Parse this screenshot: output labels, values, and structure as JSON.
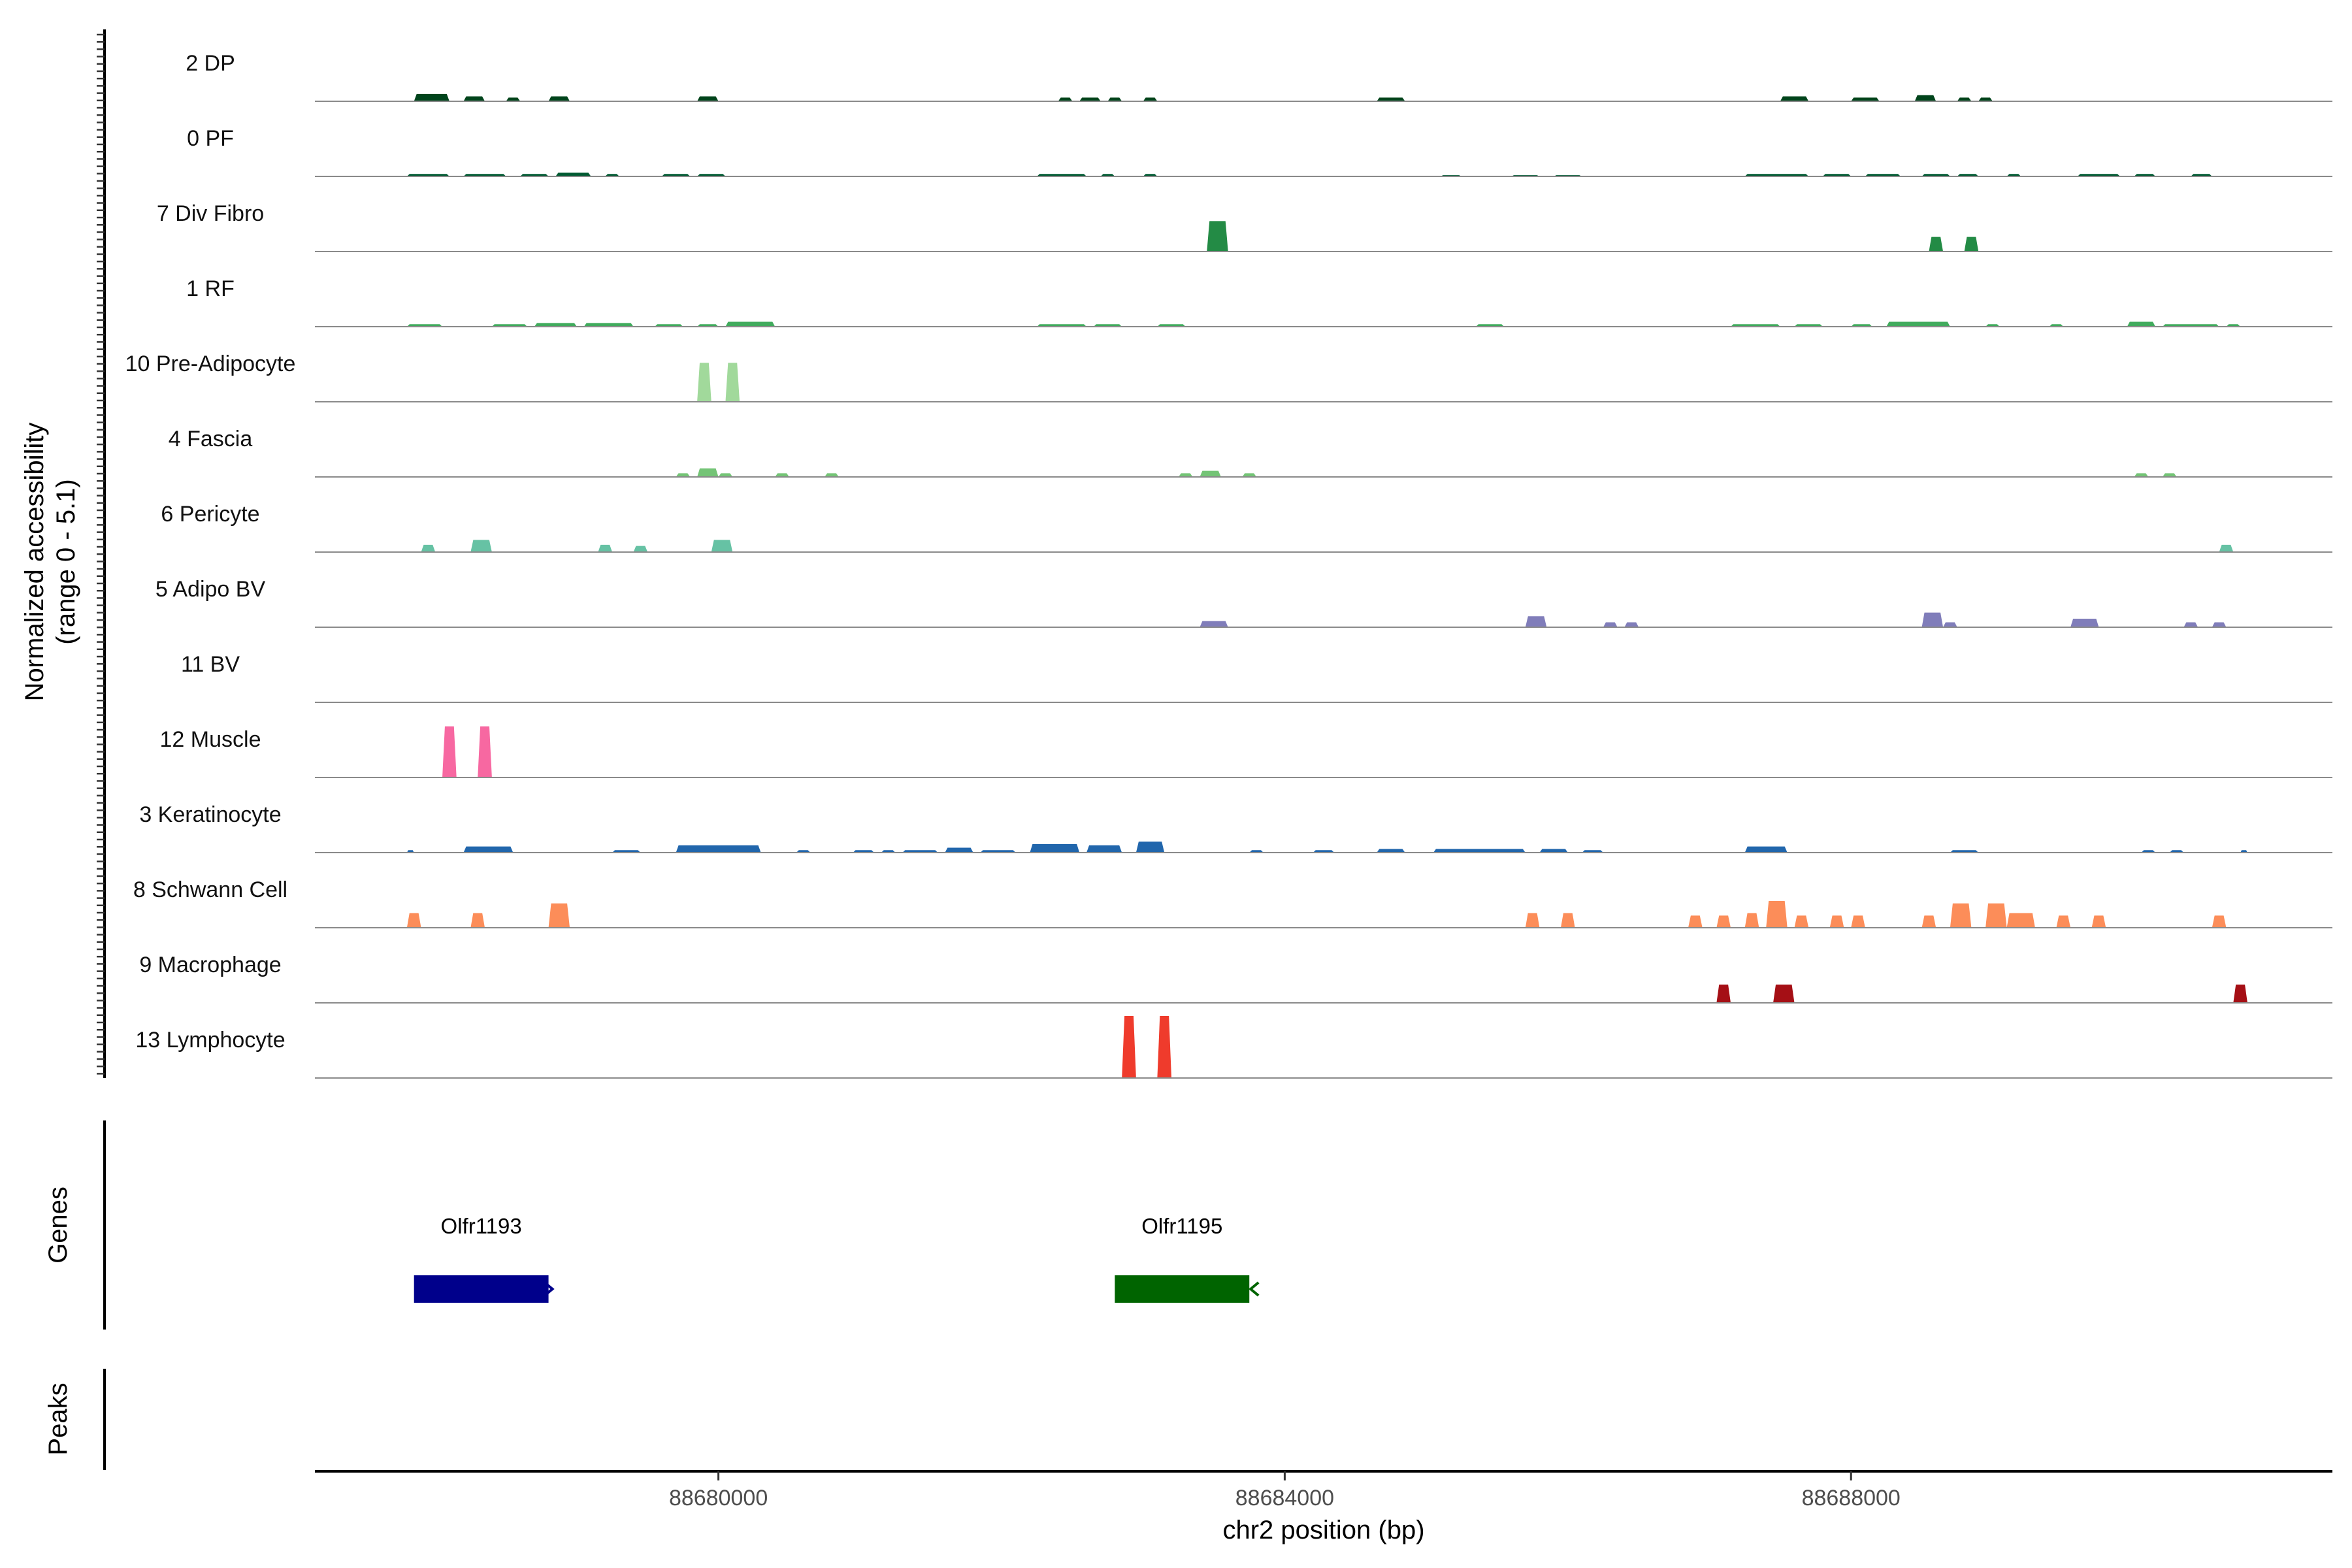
{
  "chart_data": {
    "type": "area",
    "ylabel_line1": "Normalized accessibility",
    "ylabel_line2": "(range 0 - 5.1)",
    "ylim": [
      0,
      5.1
    ],
    "xlabel": "chr2 position (bp)",
    "xlim": [
      88677150,
      88691400
    ],
    "xticks": [
      88680000,
      88684000,
      88688000
    ],
    "xtick_labels": [
      "88680000",
      "88684000",
      "88688000"
    ],
    "tracks": [
      {
        "name": "2 DP",
        "color": "#00441b",
        "peaks": [
          [
            88677850,
            88678100,
            0.6
          ],
          [
            88678200,
            88678350,
            0.4
          ],
          [
            88678500,
            88678600,
            0.3
          ],
          [
            88678800,
            88678950,
            0.4
          ],
          [
            88679850,
            88680000,
            0.4
          ],
          [
            88682400,
            88682500,
            0.3
          ],
          [
            88682550,
            88682700,
            0.3
          ],
          [
            88682750,
            88682850,
            0.3
          ],
          [
            88683000,
            88683100,
            0.3
          ],
          [
            88684650,
            88684850,
            0.3
          ],
          [
            88687500,
            88687700,
            0.4
          ],
          [
            88688000,
            88688200,
            0.3
          ],
          [
            88688450,
            88688600,
            0.5
          ],
          [
            88688750,
            88688850,
            0.3
          ],
          [
            88688900,
            88689000,
            0.3
          ]
        ]
      },
      {
        "name": "0 PF",
        "color": "#005a32",
        "peaks": [
          [
            88677800,
            88678100,
            0.2
          ],
          [
            88678200,
            88678500,
            0.2
          ],
          [
            88678600,
            88678800,
            0.2
          ],
          [
            88678850,
            88679100,
            0.3
          ],
          [
            88679200,
            88679300,
            0.2
          ],
          [
            88679600,
            88679800,
            0.2
          ],
          [
            88679850,
            88680050,
            0.2
          ],
          [
            88682250,
            88682600,
            0.2
          ],
          [
            88682700,
            88682800,
            0.2
          ],
          [
            88683000,
            88683100,
            0.2
          ],
          [
            88685100,
            88685250,
            0.1
          ],
          [
            88685600,
            88685800,
            0.1
          ],
          [
            88685900,
            88686100,
            0.1
          ],
          [
            88687250,
            88687700,
            0.2
          ],
          [
            88687800,
            88688000,
            0.2
          ],
          [
            88688100,
            88688350,
            0.2
          ],
          [
            88688500,
            88688700,
            0.2
          ],
          [
            88688750,
            88688900,
            0.2
          ],
          [
            88689100,
            88689200,
            0.2
          ],
          [
            88689600,
            88689900,
            0.2
          ],
          [
            88690000,
            88690150,
            0.2
          ],
          [
            88690400,
            88690550,
            0.2
          ]
        ]
      },
      {
        "name": "7 Div Fibro",
        "color": "#238b45",
        "peaks": [
          [
            88683450,
            88683600,
            2.5
          ],
          [
            88688550,
            88688650,
            1.2
          ],
          [
            88688800,
            88688900,
            1.2
          ]
        ]
      },
      {
        "name": "1 RF",
        "color": "#41ab5d",
        "peaks": [
          [
            88677800,
            88678050,
            0.2
          ],
          [
            88678400,
            88678650,
            0.2
          ],
          [
            88678700,
            88679000,
            0.3
          ],
          [
            88679050,
            88679400,
            0.3
          ],
          [
            88679550,
            88679750,
            0.2
          ],
          [
            88679850,
            88680000,
            0.2
          ],
          [
            88680050,
            88680400,
            0.4
          ],
          [
            88682250,
            88682600,
            0.2
          ],
          [
            88682650,
            88682850,
            0.2
          ],
          [
            88683100,
            88683300,
            0.2
          ],
          [
            88685350,
            88685550,
            0.2
          ],
          [
            88687150,
            88687500,
            0.2
          ],
          [
            88687600,
            88687800,
            0.2
          ],
          [
            88688000,
            88688150,
            0.2
          ],
          [
            88688250,
            88688700,
            0.4
          ],
          [
            88688950,
            88689050,
            0.2
          ],
          [
            88689400,
            88689500,
            0.2
          ],
          [
            88689950,
            88690150,
            0.4
          ],
          [
            88690200,
            88690600,
            0.2
          ],
          [
            88690650,
            88690750,
            0.2
          ]
        ]
      },
      {
        "name": "10 Pre-Adipocyte",
        "color": "#a1d99b",
        "peaks": [
          [
            88679850,
            88679950,
            3.2
          ],
          [
            88680050,
            88680150,
            3.2
          ]
        ]
      },
      {
        "name": "4 Fascia",
        "color": "#74c476",
        "peaks": [
          [
            88679700,
            88679800,
            0.3
          ],
          [
            88679850,
            88680000,
            0.7
          ],
          [
            88680000,
            88680100,
            0.3
          ],
          [
            88680400,
            88680500,
            0.3
          ],
          [
            88680750,
            88680850,
            0.3
          ],
          [
            88683250,
            88683350,
            0.3
          ],
          [
            88683400,
            88683550,
            0.5
          ],
          [
            88683700,
            88683800,
            0.3
          ],
          [
            88690000,
            88690100,
            0.3
          ],
          [
            88690200,
            88690300,
            0.3
          ]
        ]
      },
      {
        "name": "6 Pericyte",
        "color": "#66c2a4",
        "peaks": [
          [
            88677900,
            88678000,
            0.6
          ],
          [
            88678250,
            88678400,
            1.0
          ],
          [
            88679150,
            88679250,
            0.6
          ],
          [
            88679400,
            88679500,
            0.5
          ],
          [
            88679950,
            88680100,
            1.0
          ],
          [
            88690600,
            88690700,
            0.6
          ]
        ]
      },
      {
        "name": "5 Adipo BV",
        "color": "#807dba",
        "peaks": [
          [
            88683400,
            88683600,
            0.5
          ],
          [
            88685700,
            88685850,
            0.9
          ],
          [
            88686250,
            88686350,
            0.4
          ],
          [
            88686400,
            88686500,
            0.4
          ],
          [
            88688500,
            88688650,
            1.2
          ],
          [
            88688650,
            88688750,
            0.4
          ],
          [
            88689550,
            88689750,
            0.7
          ],
          [
            88690350,
            88690450,
            0.4
          ],
          [
            88690550,
            88690650,
            0.4
          ]
        ]
      },
      {
        "name": "11 BV",
        "color": "#6a51a3",
        "peaks": []
      },
      {
        "name": "12 Muscle",
        "color": "#f768a1",
        "peaks": [
          [
            88678050,
            88678150,
            4.2
          ],
          [
            88678300,
            88678400,
            4.2
          ]
        ]
      },
      {
        "name": "3 Keratinocyte",
        "color": "#2166ac",
        "peaks": [
          [
            88677800,
            88677850,
            0.2
          ],
          [
            88678200,
            88678550,
            0.5
          ],
          [
            88679250,
            88679450,
            0.2
          ],
          [
            88679700,
            88680300,
            0.6
          ],
          [
            88680550,
            88680650,
            0.2
          ],
          [
            88680950,
            88681100,
            0.2
          ],
          [
            88681150,
            88681250,
            0.2
          ],
          [
            88681300,
            88681550,
            0.2
          ],
          [
            88681600,
            88681800,
            0.4
          ],
          [
            88681850,
            88682100,
            0.2
          ],
          [
            88682200,
            88682550,
            0.7
          ],
          [
            88682600,
            88682850,
            0.6
          ],
          [
            88682950,
            88683150,
            0.9
          ],
          [
            88683750,
            88683850,
            0.2
          ],
          [
            88684200,
            88684350,
            0.2
          ],
          [
            88684650,
            88684850,
            0.3
          ],
          [
            88685050,
            88685700,
            0.3
          ],
          [
            88685800,
            88686000,
            0.3
          ],
          [
            88686100,
            88686250,
            0.2
          ],
          [
            88687250,
            88687550,
            0.5
          ],
          [
            88688700,
            88688900,
            0.2
          ],
          [
            88690050,
            88690150,
            0.2
          ],
          [
            88690250,
            88690350,
            0.2
          ],
          [
            88690750,
            88690800,
            0.2
          ]
        ]
      },
      {
        "name": "8 Schwann Cell",
        "color": "#fc8d59",
        "peaks": [
          [
            88677800,
            88677900,
            1.2
          ],
          [
            88678250,
            88678350,
            1.2
          ],
          [
            88678800,
            88678950,
            2.0
          ],
          [
            88685700,
            88685800,
            1.2
          ],
          [
            88685950,
            88686050,
            1.2
          ],
          [
            88686850,
            88686950,
            1.0
          ],
          [
            88687050,
            88687150,
            1.0
          ],
          [
            88687250,
            88687350,
            1.2
          ],
          [
            88687400,
            88687550,
            2.2
          ],
          [
            88687600,
            88687700,
            1.0
          ],
          [
            88687850,
            88687950,
            1.0
          ],
          [
            88688000,
            88688100,
            1.0
          ],
          [
            88688500,
            88688600,
            1.0
          ],
          [
            88688700,
            88688850,
            2.0
          ],
          [
            88688950,
            88689100,
            2.0
          ],
          [
            88689100,
            88689300,
            1.2
          ],
          [
            88689450,
            88689550,
            1.0
          ],
          [
            88689700,
            88689800,
            1.0
          ],
          [
            88690550,
            88690650,
            1.0
          ]
        ]
      },
      {
        "name": "9 Macrophage",
        "color": "#a50f15",
        "peaks": [
          [
            88687050,
            88687150,
            1.5
          ],
          [
            88687450,
            88687600,
            1.5
          ],
          [
            88690700,
            88690800,
            1.5
          ]
        ]
      },
      {
        "name": "13 Lymphocyte",
        "color": "#ef3b2c",
        "peaks": [
          [
            88682850,
            88682950,
            5.1
          ],
          [
            88683100,
            88683200,
            5.1
          ]
        ]
      }
    ],
    "genes": [
      {
        "name": "Olfr1193",
        "start": 88677850,
        "end": 88678800,
        "color": "#00008b",
        "strand": "+"
      },
      {
        "name": "Olfr1195",
        "start": 88682800,
        "end": 88683750,
        "color": "#006400",
        "strand": "-"
      }
    ],
    "genes_panel_label": "Genes",
    "peaks_panel_label": "Peaks"
  }
}
